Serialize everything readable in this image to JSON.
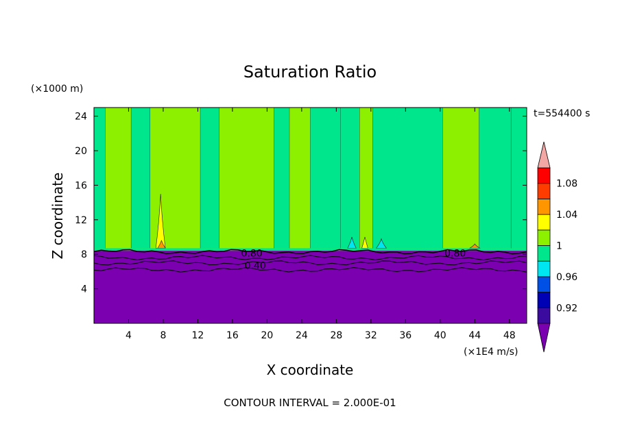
{
  "chart_data": {
    "type": "heatmap",
    "title": "Saturation Ratio",
    "xlabel": "X coordinate",
    "ylabel": "Z coordinate",
    "x_units": "(×1E4 m/s)",
    "y_units": "(×1000 m)",
    "time_label": "t=554400 s",
    "footer": "CONTOUR INTERVAL = 2.000E-01",
    "xlim": [
      0,
      50
    ],
    "ylim": [
      0,
      25
    ],
    "x_ticks": [
      4,
      8,
      12,
      16,
      20,
      24,
      28,
      32,
      36,
      40,
      44,
      48
    ],
    "y_ticks": [
      4,
      8,
      12,
      16,
      20,
      24
    ],
    "colorbar": {
      "levels": [
        0.9,
        0.92,
        0.94,
        0.96,
        0.98,
        1.0,
        1.02,
        1.04,
        1.06,
        1.08,
        1.1
      ],
      "tick_labels": [
        "0.92",
        "0.96",
        "1",
        "1.04",
        "1.08"
      ],
      "tick_values": [
        0.92,
        0.96,
        1.0,
        1.04,
        1.08
      ],
      "colors": [
        "#3a0b9e",
        "#0000b4",
        "#0050e6",
        "#00e6f0",
        "#00e68c",
        "#8cf000",
        "#ffff00",
        "#ff9600",
        "#ff3c00",
        "#ff0000"
      ],
      "under_color": "#7a00b0",
      "over_color": "#f3a7a5"
    },
    "contour_labels": [
      {
        "text": "0.80",
        "x": 17.0,
        "y": 8.2
      },
      {
        "text": "0.40",
        "x": 17.4,
        "y": 6.8
      },
      {
        "text": "0.80",
        "x": 40.5,
        "y": 8.2
      }
    ],
    "regions": {
      "background": "#8cf000",
      "lower_layer_top": 8.4,
      "lower_layer_color": "#7a00b0",
      "interface_band_top": 8.7,
      "interface_band_color": "#00e68c",
      "bands": [
        {
          "x0": 0.0,
          "x1": 1.3,
          "color": "#00e68c"
        },
        {
          "x0": 1.3,
          "x1": 4.3,
          "color": "#8cf000"
        },
        {
          "x0": 4.3,
          "x1": 6.5,
          "color": "#00e68c"
        },
        {
          "x0": 6.5,
          "x1": 12.3,
          "color": "#8cf000"
        },
        {
          "x0": 12.3,
          "x1": 14.5,
          "color": "#00e68c"
        },
        {
          "x0": 14.5,
          "x1": 20.8,
          "color": "#8cf000"
        },
        {
          "x0": 20.8,
          "x1": 22.6,
          "color": "#00e68c"
        },
        {
          "x0": 22.6,
          "x1": 25.0,
          "color": "#8cf000"
        },
        {
          "x0": 25.0,
          "x1": 28.5,
          "color": "#00e68c"
        },
        {
          "x0": 28.5,
          "x1": 30.7,
          "color": "#00e68c"
        },
        {
          "x0": 30.7,
          "x1": 32.2,
          "color": "#8cf000"
        },
        {
          "x0": 32.2,
          "x1": 40.3,
          "color": "#00e68c"
        },
        {
          "x0": 40.3,
          "x1": 44.5,
          "color": "#8cf000"
        },
        {
          "x0": 44.5,
          "x1": 48.2,
          "color": "#00e68c"
        },
        {
          "x0": 48.2,
          "x1": 50.0,
          "color": "#00e68c"
        }
      ],
      "plumes": [
        {
          "x": 7.7,
          "base": 8.7,
          "top": 15.0,
          "half_width": 0.55,
          "color": "#ffff00"
        },
        {
          "x": 7.8,
          "base": 8.7,
          "top": 9.6,
          "half_width": 0.45,
          "color": "#ff9600"
        },
        {
          "x": 31.3,
          "base": 8.7,
          "top": 10.0,
          "half_width": 0.35,
          "color": "#ffff00"
        },
        {
          "x": 29.8,
          "base": 8.7,
          "top": 10.0,
          "half_width": 0.5,
          "color": "#00e6f0"
        },
        {
          "x": 33.2,
          "base": 8.7,
          "top": 9.8,
          "half_width": 0.6,
          "color": "#00e6f0"
        },
        {
          "x": 44.0,
          "base": 8.7,
          "top": 9.2,
          "half_width": 0.6,
          "color": "#ff9600"
        }
      ],
      "contour_lines_y": [
        8.3,
        7.6,
        7.0,
        6.2
      ]
    }
  }
}
